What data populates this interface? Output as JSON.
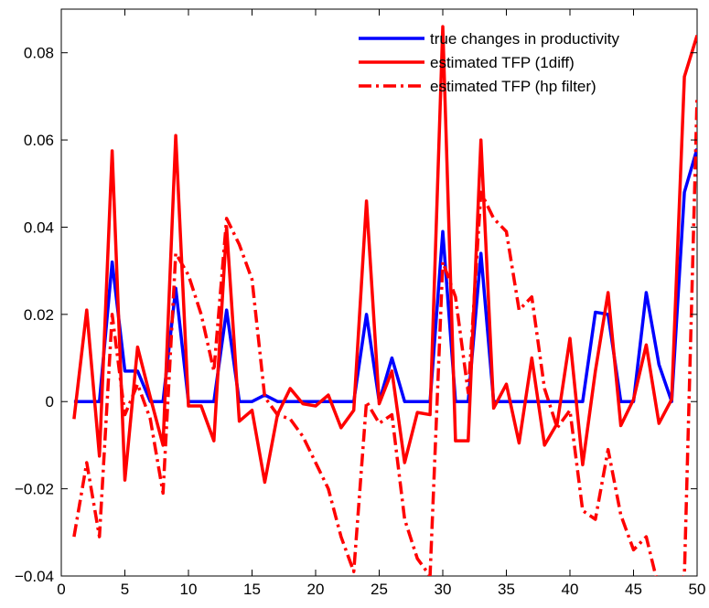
{
  "chart_data": {
    "type": "line",
    "x": [
      1,
      2,
      3,
      4,
      5,
      6,
      7,
      8,
      9,
      10,
      11,
      12,
      13,
      14,
      15,
      16,
      17,
      18,
      19,
      20,
      21,
      22,
      23,
      24,
      25,
      26,
      27,
      28,
      29,
      30,
      31,
      32,
      33,
      34,
      35,
      36,
      37,
      38,
      39,
      40,
      41,
      42,
      43,
      44,
      45,
      46,
      47,
      48,
      49,
      50
    ],
    "series": [
      {
        "name": "true changes in productivity",
        "color": "#0000ff",
        "linestyle": "solid",
        "values": [
          0,
          0,
          0,
          0.032,
          0.007,
          0.007,
          0,
          0,
          0.026,
          0,
          0,
          0,
          0.021,
          0,
          0,
          0.0015,
          0,
          0,
          0,
          0,
          0,
          0,
          0,
          0.02,
          0,
          0.01,
          0,
          0,
          0,
          0.039,
          0,
          0,
          0.034,
          0,
          0,
          0,
          0,
          0,
          0,
          0,
          0,
          0.0205,
          0.02,
          0,
          0,
          0.025,
          0.0085,
          0,
          0.048,
          0.058
        ]
      },
      {
        "name": "estimated TFP (1diff)",
        "color": "#ff0000",
        "linestyle": "solid",
        "values": [
          -0.004,
          0.021,
          -0.0125,
          0.0575,
          -0.018,
          0.0125,
          0.001,
          -0.01,
          0.061,
          -0.001,
          -0.001,
          -0.009,
          0.04,
          -0.0045,
          -0.002,
          -0.0185,
          -0.003,
          0.003,
          -0.0005,
          -0.001,
          0.0015,
          -0.006,
          -0.002,
          0.046,
          -0.0005,
          0.007,
          -0.014,
          -0.0025,
          -0.003,
          0.086,
          -0.009,
          -0.009,
          0.06,
          -0.0015,
          0.004,
          -0.0095,
          0.01,
          -0.01,
          -0.005,
          0.0145,
          -0.0145,
          0.007,
          0.025,
          -0.0055,
          0.0005,
          0.013,
          -0.005,
          0.0005,
          0.0745,
          0.084
        ]
      },
      {
        "name": "estimated TFP (hp filter)",
        "color": "#ff0000",
        "linestyle": "dashdot",
        "values": [
          -0.031,
          -0.014,
          -0.031,
          0.02,
          -0.003,
          0.004,
          -0.004,
          -0.021,
          0.034,
          0.029,
          0.02,
          0.007,
          0.042,
          0.036,
          0.028,
          0.001,
          -0.003,
          -0.004,
          -0.008,
          -0.014,
          -0.02,
          -0.031,
          -0.039,
          0,
          -0.005,
          -0.003,
          -0.027,
          -0.036,
          -0.04,
          0.032,
          0.024,
          0.002,
          0.048,
          0.042,
          0.039,
          0.021,
          0.024,
          0.003,
          -0.006,
          -0.002,
          -0.025,
          -0.027,
          -0.011,
          -0.026,
          -0.034,
          -0.031,
          -0.043,
          -0.043,
          -0.04,
          0.07
        ]
      }
    ],
    "xlim": [
      0,
      50
    ],
    "xticks": [
      0,
      5,
      10,
      15,
      20,
      25,
      30,
      35,
      40,
      45,
      50
    ],
    "ylim": [
      -0.04,
      0.09
    ],
    "yticks": [
      {
        "value": -0.04,
        "label": "−0.04"
      },
      {
        "value": -0.02,
        "label": "−0.02"
      },
      0,
      0.02,
      0.04,
      0.06,
      0.08
    ],
    "legend": "northeast",
    "grid": false
  }
}
